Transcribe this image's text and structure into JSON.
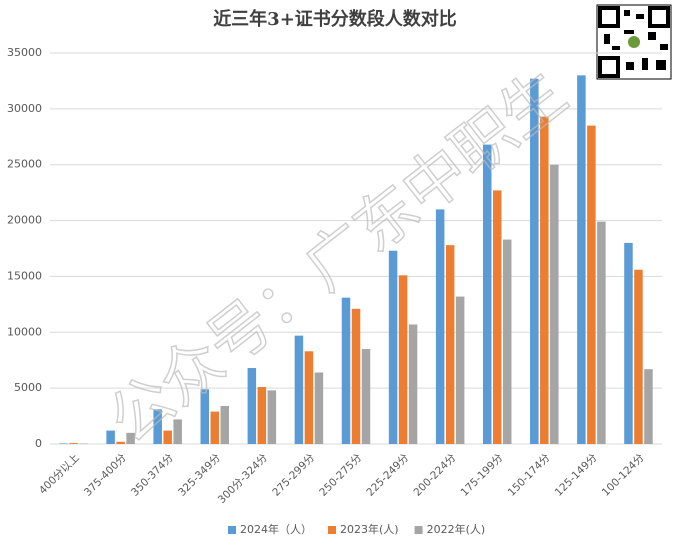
{
  "chart_data": {
    "type": "bar",
    "title": "近三年3+证书分数段人数对比",
    "watermark": "公众号：广东中职生",
    "categories": [
      "400分以上",
      "375-400分",
      "350-374分",
      "325-349分",
      "300分-324分",
      "275-299分",
      "250-275分",
      "225-249分",
      "200-224分",
      "175-199分",
      "150-174分",
      "125-149分",
      "100-124分"
    ],
    "series": [
      {
        "name": "2024年（人）",
        "color": "#5b9bd5",
        "values": [
          50,
          1200,
          3100,
          4900,
          6800,
          9700,
          13100,
          17300,
          21000,
          26800,
          32700,
          33000,
          18000
        ]
      },
      {
        "name": "2023年(人)",
        "color": "#ed7d31",
        "values": [
          80,
          200,
          1200,
          2900,
          5100,
          8300,
          12100,
          15100,
          17800,
          22700,
          29300,
          28500,
          15600
        ]
      },
      {
        "name": "2022年(人)",
        "color": "#a5a5a5",
        "values": [
          40,
          1000,
          2200,
          3400,
          4800,
          6400,
          8500,
          10700,
          13200,
          18300,
          25000,
          19900,
          6700
        ]
      }
    ],
    "ylim": [
      0,
      35000
    ],
    "yticks": [
      0,
      5000,
      10000,
      15000,
      20000,
      25000,
      30000,
      35000
    ],
    "grid": true,
    "legend": "bottom"
  }
}
